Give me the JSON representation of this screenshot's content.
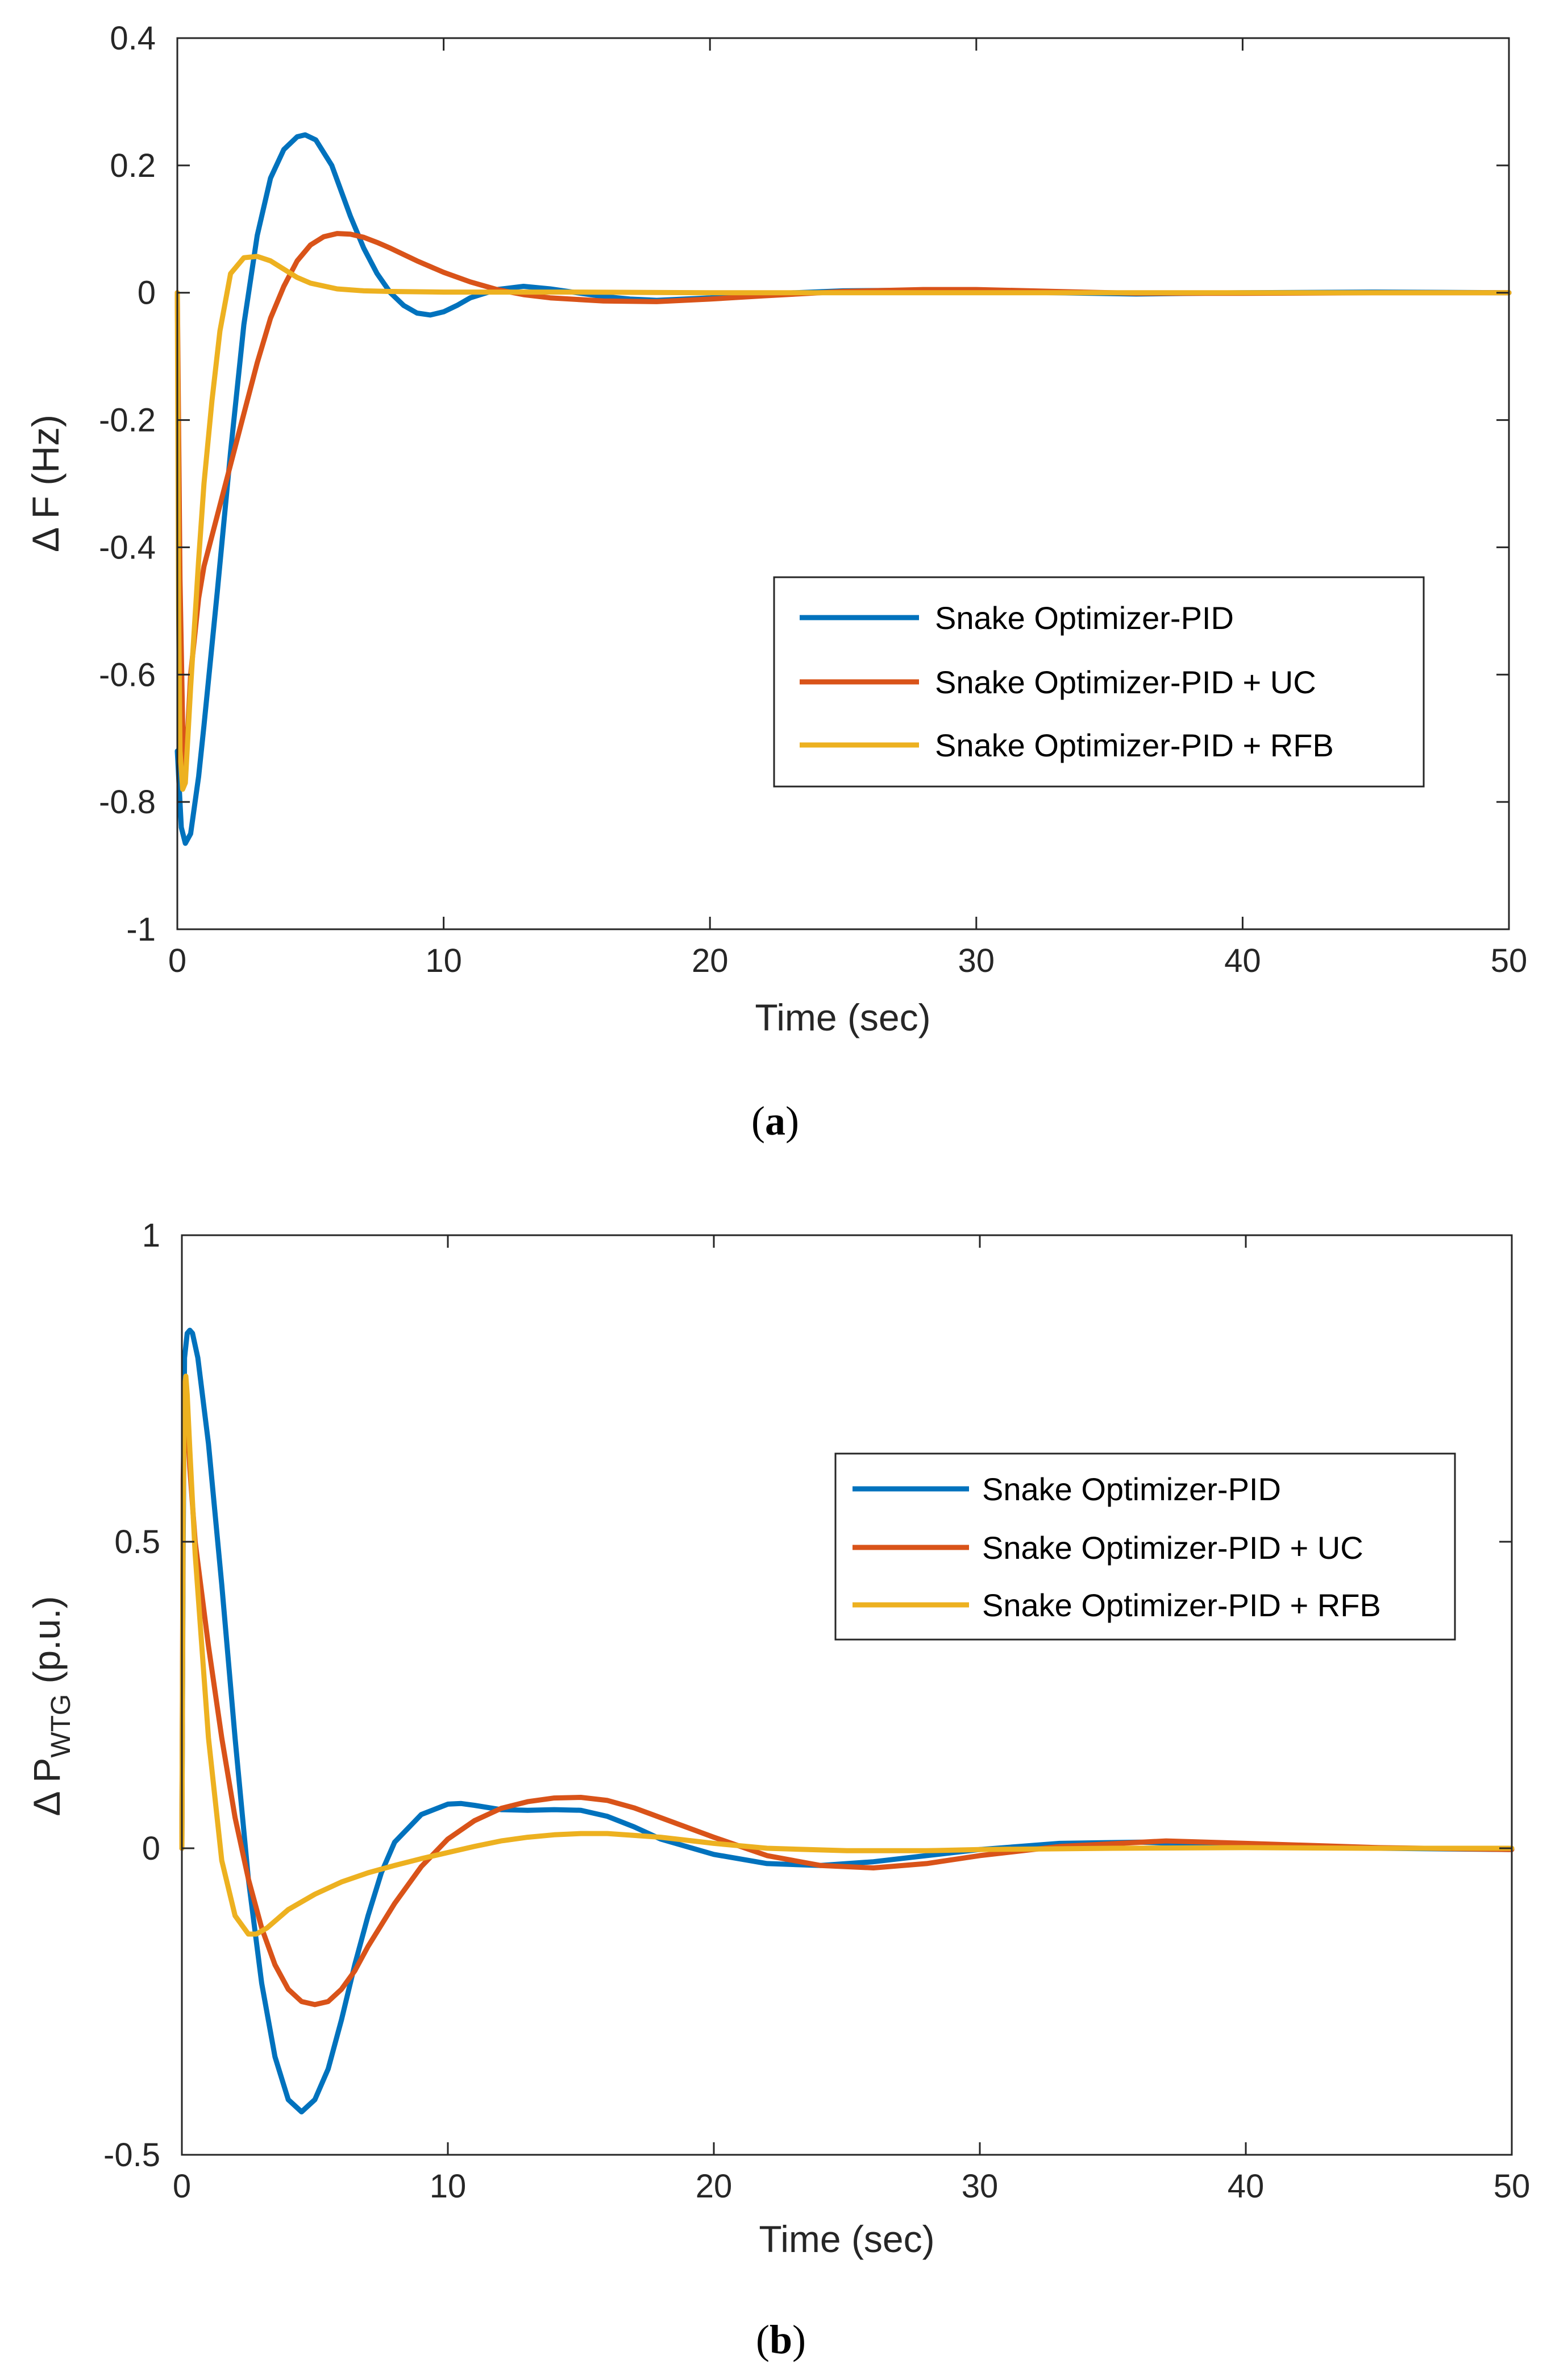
{
  "chart_data": [
    {
      "type": "line",
      "panel": "a",
      "caption_letter": "a",
      "caption_open": "(",
      "caption_close": ")",
      "xlabel": "Time (sec)",
      "ylabel": "Δ F (Hz)",
      "xlim": [
        0,
        50
      ],
      "ylim": [
        -1,
        0.4
      ],
      "xticks": [
        0,
        10,
        20,
        30,
        40,
        50
      ],
      "yticks": [
        -1,
        -0.8,
        -0.6,
        -0.4,
        -0.2,
        0,
        0.2,
        0.4
      ],
      "yticklabels": [
        "-1",
        "-0.8",
        "-0.6",
        "-0.4",
        "-0.2",
        "0",
        "0.2",
        "0.4"
      ],
      "grid": false,
      "legend_position": "middle-right",
      "series": [
        {
          "name": "Snake Optimizer-PID",
          "color": "#0072BD",
          "x": [
            0,
            0.15,
            0.3,
            0.5,
            0.8,
            1.0,
            1.5,
            2.0,
            2.5,
            3.0,
            3.5,
            4.0,
            4.5,
            4.8,
            5.2,
            5.8,
            6.5,
            7.0,
            7.5,
            8.0,
            8.5,
            9.0,
            9.5,
            10.0,
            10.5,
            11.0,
            12.0,
            13.0,
            14.0,
            15.0,
            16.0,
            17.0,
            18.0,
            20.0,
            22.0,
            25.0,
            28.0,
            30.0,
            33.0,
            36.0,
            40.0,
            45.0,
            50.0
          ],
          "y": [
            -0.72,
            -0.84,
            -0.865,
            -0.85,
            -0.76,
            -0.68,
            -0.47,
            -0.25,
            -0.05,
            0.09,
            0.18,
            0.225,
            0.245,
            0.248,
            0.24,
            0.2,
            0.12,
            0.07,
            0.03,
            0.0,
            -0.02,
            -0.032,
            -0.035,
            -0.03,
            -0.02,
            -0.008,
            0.005,
            0.01,
            0.006,
            0.0,
            -0.006,
            -0.01,
            -0.012,
            -0.008,
            -0.002,
            0.003,
            0.004,
            0.002,
            0.0,
            -0.002,
            0.0,
            0.001,
            0.0
          ]
        },
        {
          "name": "Snake Optimizer-PID + UC",
          "color": "#D95319",
          "x": [
            0,
            0.1,
            0.2,
            0.3,
            0.5,
            0.8,
            1.0,
            1.5,
            2.0,
            2.5,
            3.0,
            3.5,
            4.0,
            4.5,
            5.0,
            5.5,
            6.0,
            6.5,
            7.0,
            7.5,
            8.0,
            9.0,
            10.0,
            11.0,
            12.0,
            13.0,
            14.0,
            16.0,
            18.0,
            20.0,
            22.0,
            25.0,
            28.0,
            30.0,
            33.0,
            36.0,
            40.0,
            45.0,
            50.0
          ],
          "y": [
            0.0,
            -0.45,
            -0.68,
            -0.76,
            -0.6,
            -0.48,
            -0.43,
            -0.35,
            -0.27,
            -0.19,
            -0.11,
            -0.04,
            0.01,
            0.05,
            0.075,
            0.088,
            0.093,
            0.092,
            0.087,
            0.079,
            0.07,
            0.05,
            0.032,
            0.017,
            0.005,
            -0.003,
            -0.008,
            -0.013,
            -0.014,
            -0.01,
            -0.005,
            0.002,
            0.005,
            0.005,
            0.002,
            -0.001,
            -0.001,
            0.0,
            0.0
          ]
        },
        {
          "name": "Snake Optimizer-PID + RFB",
          "color": "#EDB120",
          "x": [
            0,
            0.05,
            0.1,
            0.2,
            0.3,
            0.5,
            0.8,
            1.0,
            1.3,
            1.6,
            2.0,
            2.5,
            3.0,
            3.5,
            4.0,
            4.5,
            5.0,
            6.0,
            7.0,
            8.0,
            10.0,
            15.0,
            20.0,
            30.0,
            40.0,
            50.0
          ],
          "y": [
            0.0,
            -0.5,
            -0.72,
            -0.78,
            -0.77,
            -0.62,
            -0.42,
            -0.3,
            -0.17,
            -0.06,
            0.03,
            0.055,
            0.057,
            0.05,
            0.037,
            0.024,
            0.015,
            0.006,
            0.003,
            0.002,
            0.001,
            0.001,
            0.0,
            0.0,
            0.0,
            0.0
          ]
        }
      ]
    },
    {
      "type": "line",
      "panel": "b",
      "caption_letter": "b",
      "caption_open": "(",
      "caption_close": ")",
      "xlabel": "Time (sec)",
      "ylabel_main": "Δ P",
      "ylabel_sub": "WTG",
      "ylabel_unit": " (p.u.)",
      "xlim": [
        0,
        50
      ],
      "ylim": [
        -0.5,
        1
      ],
      "xticks": [
        0,
        10,
        20,
        30,
        40,
        50
      ],
      "yticks": [
        -0.5,
        0,
        0.5,
        1
      ],
      "yticklabels": [
        "-0.5",
        "0",
        "0.5",
        "1"
      ],
      "grid": false,
      "legend_position": "upper-right",
      "series": [
        {
          "name": "Snake Optimizer-PID",
          "color": "#0072BD",
          "x": [
            0,
            0.05,
            0.1,
            0.2,
            0.3,
            0.4,
            0.6,
            1.0,
            1.5,
            2.0,
            2.5,
            3.0,
            3.5,
            4.0,
            4.5,
            5.0,
            5.5,
            6.0,
            6.5,
            7.0,
            7.5,
            8.0,
            9.0,
            10.0,
            10.5,
            11.0,
            12.0,
            13.0,
            14.0,
            15.0,
            16.0,
            17.0,
            18.0,
            20.0,
            22.0,
            24.0,
            26.0,
            28.0,
            30.0,
            33.0,
            36.0,
            40.0,
            45.0,
            50.0
          ],
          "y": [
            0.0,
            0.5,
            0.8,
            0.84,
            0.845,
            0.84,
            0.8,
            0.66,
            0.43,
            0.18,
            -0.05,
            -0.22,
            -0.34,
            -0.41,
            -0.43,
            -0.41,
            -0.36,
            -0.28,
            -0.19,
            -0.11,
            -0.04,
            0.01,
            0.055,
            0.072,
            0.073,
            0.07,
            0.063,
            0.062,
            0.063,
            0.062,
            0.052,
            0.035,
            0.015,
            -0.01,
            -0.025,
            -0.028,
            -0.022,
            -0.012,
            -0.002,
            0.008,
            0.01,
            0.004,
            0.0,
            -0.002
          ]
        },
        {
          "name": "Snake Optimizer-PID + UC",
          "color": "#D95319",
          "x": [
            0,
            0.05,
            0.1,
            0.2,
            0.3,
            0.5,
            1.0,
            1.5,
            2.0,
            2.5,
            3.0,
            3.5,
            4.0,
            4.5,
            5.0,
            5.5,
            6.0,
            6.5,
            7.0,
            8.0,
            9.0,
            10.0,
            11.0,
            12.0,
            13.0,
            14.0,
            15.0,
            16.0,
            17.0,
            18.0,
            20.0,
            22.0,
            24.0,
            26.0,
            28.0,
            30.0,
            33.0,
            37.0,
            40.0,
            45.0,
            50.0
          ],
          "y": [
            0.0,
            0.6,
            0.74,
            0.7,
            0.62,
            0.5,
            0.33,
            0.18,
            0.05,
            -0.05,
            -0.13,
            -0.19,
            -0.23,
            -0.25,
            -0.255,
            -0.25,
            -0.23,
            -0.2,
            -0.16,
            -0.09,
            -0.03,
            0.015,
            0.045,
            0.065,
            0.076,
            0.082,
            0.083,
            0.078,
            0.066,
            0.05,
            0.018,
            -0.012,
            -0.028,
            -0.032,
            -0.025,
            -0.012,
            0.003,
            0.012,
            0.008,
            0.001,
            -0.002
          ]
        },
        {
          "name": "Snake Optimizer-PID + RFB",
          "color": "#EDB120",
          "x": [
            0,
            0.05,
            0.1,
            0.15,
            0.2,
            0.3,
            0.5,
            0.8,
            1.0,
            1.5,
            2.0,
            2.5,
            2.8,
            3.2,
            3.6,
            4.0,
            5.0,
            6.0,
            7.0,
            8.0,
            9.0,
            10.0,
            11.0,
            12.0,
            13.0,
            14.0,
            15.0,
            16.0,
            18.0,
            20.0,
            22.0,
            25.0,
            28.0,
            30.0,
            35.0,
            40.0,
            45.0,
            50.0
          ],
          "y": [
            0.0,
            0.55,
            0.75,
            0.77,
            0.74,
            0.65,
            0.48,
            0.3,
            0.18,
            -0.02,
            -0.11,
            -0.14,
            -0.14,
            -0.13,
            -0.115,
            -0.1,
            -0.075,
            -0.055,
            -0.04,
            -0.028,
            -0.017,
            -0.007,
            0.003,
            0.012,
            0.018,
            0.022,
            0.024,
            0.024,
            0.018,
            0.008,
            0.0,
            -0.004,
            -0.004,
            -0.002,
            0.0,
            0.001,
            0.0,
            0.0
          ]
        }
      ]
    }
  ]
}
